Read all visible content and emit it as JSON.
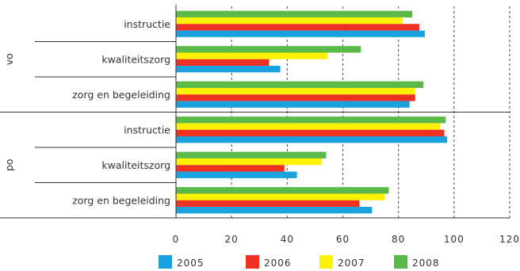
{
  "chart_data": {
    "type": "bar",
    "orientation": "horizontal",
    "groups": [
      {
        "label": "vo",
        "categories": [
          "instructie",
          "kwaliteitszorg",
          "zorg en begeleiding"
        ]
      },
      {
        "label": "po",
        "categories": [
          "instructie",
          "kwaliteitszorg",
          "zorg en begeleiding"
        ]
      }
    ],
    "series": [
      {
        "name": "2005",
        "color": "#1aa1e0",
        "values": [
          89.5,
          37.5,
          84.0,
          97.5,
          43.5,
          70.5
        ]
      },
      {
        "name": "2006",
        "color": "#ef3124",
        "values": [
          87.5,
          33.5,
          86.0,
          96.5,
          39.0,
          66.0
        ]
      },
      {
        "name": "2007",
        "color": "#fff200",
        "values": [
          81.5,
          54.5,
          86.0,
          95.0,
          52.5,
          75.0
        ]
      },
      {
        "name": "2008",
        "color": "#5bb947",
        "values": [
          85.0,
          66.5,
          89.0,
          97.0,
          54.0,
          76.5
        ]
      }
    ],
    "x_ticks": [
      "0",
      "20",
      "40",
      "60",
      "80",
      "100",
      "120"
    ],
    "xlim": [
      0,
      120
    ],
    "grid": "dashed vertical",
    "legend_position": "bottom"
  }
}
